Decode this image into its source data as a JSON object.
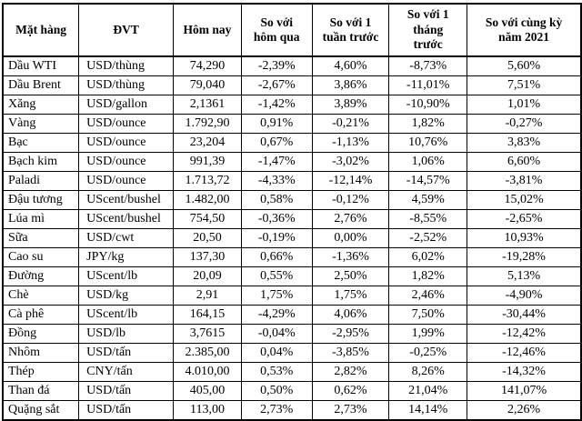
{
  "chart_data": {
    "type": "table",
    "columns": [
      "Mặt hàng",
      "ĐVT",
      "Hôm nay",
      "So với hôm qua",
      "So với 1 tuần trước",
      "So với 1 tháng trước",
      "So với cùng kỳ năm 2021"
    ],
    "rows": [
      [
        "Dầu WTI",
        "USD/thùng",
        "74,290",
        "-2,39%",
        "4,60%",
        "-8,73%",
        "5,60%"
      ],
      [
        "Dầu Brent",
        "USD/thùng",
        "79,040",
        "-2,67%",
        "3,86%",
        "-11,01%",
        "7,51%"
      ],
      [
        "Xăng",
        "USD/gallon",
        "2,1361",
        "-1,42%",
        "3,89%",
        "-10,90%",
        "1,01%"
      ],
      [
        "Vàng",
        "USD/ounce",
        "1.792,90",
        "0,91%",
        "-0,21%",
        "1,82%",
        "-0,27%"
      ],
      [
        "Bạc",
        "USD/ounce",
        "23,204",
        "0,67%",
        "-1,13%",
        "10,76%",
        "3,83%"
      ],
      [
        "Bạch kim",
        "USD/ounce",
        "991,39",
        "-1,47%",
        "-3,02%",
        "1,06%",
        "6,60%"
      ],
      [
        "Paladi",
        "USD/ounce",
        "1.713,72",
        "-4,33%",
        "-12,14%",
        "-14,57%",
        "-3,81%"
      ],
      [
        "Đậu tương",
        "UScent/bushel",
        "1.482,00",
        "0,58%",
        "-0,12%",
        "4,59%",
        "15,02%"
      ],
      [
        "Lúa mì",
        "UScent/bushel",
        "754,50",
        "-0,36%",
        "2,76%",
        "-8,55%",
        "-2,65%"
      ],
      [
        "Sữa",
        "USD/cwt",
        "20,50",
        "-0,19%",
        "0,00%",
        "-2,52%",
        "10,93%"
      ],
      [
        "Cao su",
        "JPY/kg",
        "137,30",
        "0,66%",
        "-1,36%",
        "6,02%",
        "-19,28%"
      ],
      [
        "Đường",
        "UScent/lb",
        "20,09",
        "0,55%",
        "2,50%",
        "1,82%",
        "5,13%"
      ],
      [
        "Chè",
        "USD/kg",
        "2,91",
        "1,75%",
        "1,75%",
        "2,46%",
        "-4,90%"
      ],
      [
        "Cà phê",
        "UScent/lb",
        "164,15",
        "-4,29%",
        "4,06%",
        "7,50%",
        "-30,44%"
      ],
      [
        "Đồng",
        "USD/lb",
        "3,7615",
        "-0,04%",
        "-2,95%",
        "1,99%",
        "-12,42%"
      ],
      [
        "Nhôm",
        "USD/tấn",
        "2.385,00",
        "0,04%",
        "-3,85%",
        "-0,25%",
        "-12,46%"
      ],
      [
        "Thép",
        "CNY/tấn",
        "4.010,00",
        "0,53%",
        "2,82%",
        "8,26%",
        "-14,32%"
      ],
      [
        "Than đá",
        "USD/tấn",
        "405,00",
        "0,50%",
        "0,62%",
        "21,04%",
        "141,07%"
      ],
      [
        "Quặng sắt",
        "USD/tấn",
        "113,00",
        "2,73%",
        "2,73%",
        "14,14%",
        "2,26%"
      ]
    ],
    "layout": {
      "grid": "full-borders",
      "border_color": "#000000",
      "background_color": "#ffffff",
      "text_color": "#000000"
    }
  }
}
